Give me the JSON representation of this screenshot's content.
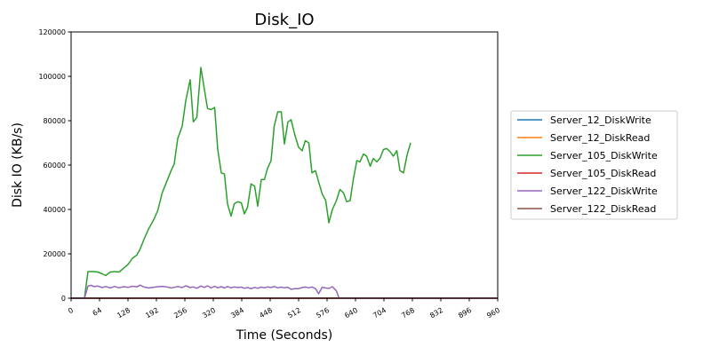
{
  "chart_data": {
    "type": "line",
    "title": "Disk_IO",
    "xlabel": "Time (Seconds)",
    "ylabel": "Disk IO (KB/s)",
    "xlim": [
      0,
      960
    ],
    "ylim": [
      0,
      120000
    ],
    "x_ticks": [
      0,
      64,
      128,
      192,
      256,
      320,
      384,
      448,
      512,
      576,
      640,
      704,
      768,
      832,
      896,
      960
    ],
    "y_ticks": [
      0,
      20000,
      40000,
      60000,
      80000,
      100000,
      120000
    ],
    "grid": false,
    "legend_position": "right",
    "series": [
      {
        "name": "Server_12_DiskWrite",
        "color": "#1f77b4",
        "points": [
          [
            0,
            0
          ],
          [
            960,
            0
          ]
        ]
      },
      {
        "name": "Server_12_DiskRead",
        "color": "#ff7f0e",
        "points": [
          [
            0,
            0
          ],
          [
            960,
            0
          ]
        ]
      },
      {
        "name": "Server_105_DiskWrite",
        "color": "#2ca02c",
        "points": [
          [
            0,
            0
          ],
          [
            30,
            0
          ],
          [
            38,
            12000
          ],
          [
            50,
            12000
          ],
          [
            60,
            11800
          ],
          [
            70,
            11000
          ],
          [
            78,
            10200
          ],
          [
            88,
            11800
          ],
          [
            98,
            12000
          ],
          [
            108,
            11800
          ],
          [
            118,
            13500
          ],
          [
            128,
            15200
          ],
          [
            138,
            18000
          ],
          [
            148,
            19500
          ],
          [
            155,
            22000
          ],
          [
            165,
            27000
          ],
          [
            175,
            31500
          ],
          [
            185,
            35000
          ],
          [
            195,
            39500
          ],
          [
            205,
            47500
          ],
          [
            215,
            52500
          ],
          [
            225,
            57500
          ],
          [
            232,
            60500
          ],
          [
            240,
            72000
          ],
          [
            250,
            77500
          ],
          [
            258,
            89000
          ],
          [
            268,
            98500
          ],
          [
            275,
            79500
          ],
          [
            283,
            81500
          ],
          [
            292,
            104000
          ],
          [
            300,
            94000
          ],
          [
            307,
            85500
          ],
          [
            315,
            85000
          ],
          [
            323,
            86000
          ],
          [
            330,
            67000
          ],
          [
            338,
            56500
          ],
          [
            345,
            56000
          ],
          [
            352,
            42500
          ],
          [
            360,
            37000
          ],
          [
            367,
            42500
          ],
          [
            375,
            43500
          ],
          [
            383,
            43000
          ],
          [
            390,
            38000
          ],
          [
            397,
            41000
          ],
          [
            405,
            51500
          ],
          [
            413,
            50500
          ],
          [
            420,
            41500
          ],
          [
            428,
            53500
          ],
          [
            435,
            53500
          ],
          [
            442,
            58500
          ],
          [
            450,
            62000
          ],
          [
            457,
            77500
          ],
          [
            465,
            84000
          ],
          [
            473,
            84000
          ],
          [
            480,
            69500
          ],
          [
            488,
            79500
          ],
          [
            495,
            80500
          ],
          [
            503,
            74000
          ],
          [
            512,
            68000
          ],
          [
            520,
            66500
          ],
          [
            527,
            71000
          ],
          [
            535,
            70000
          ],
          [
            542,
            56500
          ],
          [
            550,
            57500
          ],
          [
            557,
            52500
          ],
          [
            565,
            47000
          ],
          [
            573,
            44000
          ],
          [
            580,
            34000
          ],
          [
            588,
            40000
          ],
          [
            597,
            44000
          ],
          [
            605,
            49000
          ],
          [
            613,
            47500
          ],
          [
            620,
            43500
          ],
          [
            628,
            44000
          ],
          [
            635,
            53500
          ],
          [
            643,
            62000
          ],
          [
            650,
            61500
          ],
          [
            658,
            65000
          ],
          [
            665,
            64000
          ],
          [
            673,
            59500
          ],
          [
            680,
            63000
          ],
          [
            688,
            61500
          ],
          [
            695,
            63000
          ],
          [
            703,
            67000
          ],
          [
            710,
            67500
          ],
          [
            718,
            66000
          ],
          [
            725,
            64000
          ],
          [
            733,
            66500
          ],
          [
            740,
            57500
          ],
          [
            748,
            56500
          ],
          [
            756,
            64500
          ],
          [
            764,
            70000
          ]
        ]
      },
      {
        "name": "Server_105_DiskRead",
        "color": "#d62728",
        "points": [
          [
            0,
            0
          ],
          [
            960,
            0
          ]
        ]
      },
      {
        "name": "Server_122_DiskWrite",
        "color": "#9467bd",
        "points": [
          [
            0,
            0
          ],
          [
            30,
            0
          ],
          [
            38,
            5500
          ],
          [
            45,
            5800
          ],
          [
            52,
            5200
          ],
          [
            60,
            5500
          ],
          [
            70,
            4800
          ],
          [
            78,
            5300
          ],
          [
            88,
            4600
          ],
          [
            98,
            5300
          ],
          [
            108,
            4700
          ],
          [
            118,
            5200
          ],
          [
            128,
            4900
          ],
          [
            138,
            5400
          ],
          [
            148,
            5100
          ],
          [
            155,
            5900
          ],
          [
            165,
            5000
          ],
          [
            175,
            4600
          ],
          [
            185,
            4900
          ],
          [
            195,
            5200
          ],
          [
            205,
            5300
          ],
          [
            215,
            5100
          ],
          [
            225,
            4600
          ],
          [
            232,
            4900
          ],
          [
            240,
            5300
          ],
          [
            250,
            4800
          ],
          [
            258,
            5600
          ],
          [
            268,
            4800
          ],
          [
            275,
            5100
          ],
          [
            283,
            4500
          ],
          [
            292,
            5500
          ],
          [
            300,
            4900
          ],
          [
            307,
            5600
          ],
          [
            315,
            4600
          ],
          [
            323,
            5400
          ],
          [
            330,
            4700
          ],
          [
            338,
            5200
          ],
          [
            345,
            4600
          ],
          [
            352,
            5300
          ],
          [
            360,
            4700
          ],
          [
            367,
            5100
          ],
          [
            375,
            4800
          ],
          [
            383,
            5000
          ],
          [
            390,
            4500
          ],
          [
            397,
            4800
          ],
          [
            405,
            4300
          ],
          [
            413,
            4900
          ],
          [
            420,
            4500
          ],
          [
            428,
            5000
          ],
          [
            435,
            4700
          ],
          [
            442,
            5100
          ],
          [
            450,
            4800
          ],
          [
            457,
            5300
          ],
          [
            465,
            4700
          ],
          [
            473,
            5000
          ],
          [
            480,
            4700
          ],
          [
            488,
            4900
          ],
          [
            495,
            4000
          ],
          [
            503,
            4300
          ],
          [
            512,
            4300
          ],
          [
            520,
            4800
          ],
          [
            527,
            5000
          ],
          [
            535,
            4700
          ],
          [
            542,
            5100
          ],
          [
            550,
            4300
          ],
          [
            557,
            2000
          ],
          [
            565,
            4900
          ],
          [
            573,
            4600
          ],
          [
            580,
            4400
          ],
          [
            588,
            5200
          ],
          [
            597,
            3300
          ],
          [
            603,
            0
          ],
          [
            960,
            0
          ]
        ]
      },
      {
        "name": "Server_122_DiskRead",
        "color": "#8c564b",
        "points": [
          [
            0,
            0
          ],
          [
            960,
            0
          ]
        ]
      }
    ]
  }
}
